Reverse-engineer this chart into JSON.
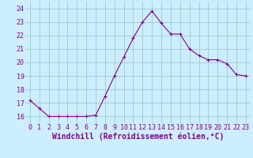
{
  "x": [
    0,
    1,
    2,
    3,
    4,
    5,
    6,
    7,
    8,
    9,
    10,
    11,
    12,
    13,
    14,
    15,
    16,
    17,
    18,
    19,
    20,
    21,
    22,
    23
  ],
  "y": [
    17.2,
    16.6,
    16.0,
    16.0,
    16.0,
    16.0,
    16.0,
    16.1,
    17.5,
    19.0,
    20.4,
    21.8,
    23.0,
    23.8,
    22.9,
    22.1,
    22.1,
    21.0,
    20.5,
    20.2,
    20.2,
    19.9,
    19.1,
    19.0
  ],
  "line_color": "#880088",
  "marker": "+",
  "marker_size": 3,
  "bg_color": "#cceeff",
  "grid_color": "#99cccc",
  "xlabel": "Windchill (Refroidissement éolien,°C)",
  "xlabel_color": "#880088",
  "tick_color": "#880088",
  "ylim": [
    15.5,
    24.5
  ],
  "xlim": [
    -0.5,
    23.5
  ],
  "yticks": [
    16,
    17,
    18,
    19,
    20,
    21,
    22,
    23,
    24
  ],
  "xticks": [
    0,
    1,
    2,
    3,
    4,
    5,
    6,
    7,
    8,
    9,
    10,
    11,
    12,
    13,
    14,
    15,
    16,
    17,
    18,
    19,
    20,
    21,
    22,
    23
  ],
  "xtick_labels": [
    "0",
    "1",
    "2",
    "3",
    "4",
    "5",
    "6",
    "7",
    "8",
    "9",
    "10",
    "11",
    "12",
    "13",
    "14",
    "15",
    "16",
    "17",
    "18",
    "19",
    "20",
    "21",
    "22",
    "23"
  ],
  "ytick_labels": [
    "16",
    "17",
    "18",
    "19",
    "20",
    "21",
    "22",
    "23",
    "24"
  ],
  "font_size": 6,
  "xlabel_font_size": 7
}
